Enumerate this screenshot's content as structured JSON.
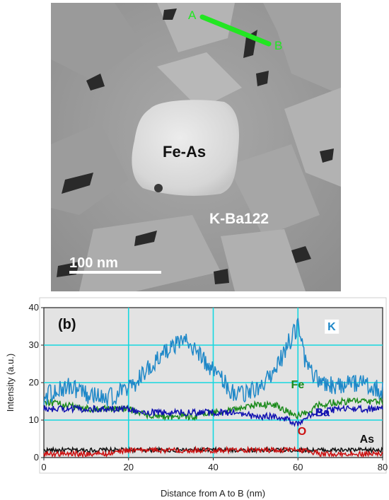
{
  "micrograph": {
    "point_a": "A",
    "point_b": "B",
    "phase_fe_as": "Fe-As",
    "phase_matrix": "K-Ba122",
    "scale_bar": "100 nm",
    "line_color": "#22e622"
  },
  "chart_data": {
    "type": "line",
    "panel_label": "(b)",
    "xlabel": "Distance from A to B (nm)",
    "ylabel": "Intensity (a.u.)",
    "xlim": [
      0,
      80
    ],
    "ylim": [
      0,
      40
    ],
    "xticks": [
      "0",
      "20",
      "40",
      "60",
      "80"
    ],
    "yticks": [
      "0",
      "10",
      "20",
      "30",
      "40"
    ],
    "grid": true,
    "x": [
      0,
      5,
      10,
      15,
      20,
      25,
      30,
      33,
      36,
      40,
      45,
      50,
      55,
      58,
      60,
      62,
      65,
      70,
      75,
      80
    ],
    "series": [
      {
        "name": "K",
        "color": "#1f88c8",
        "values": [
          16,
          19,
          17,
          16,
          18,
          24,
          29,
          31,
          29,
          23,
          17,
          18,
          24,
          31,
          35,
          24,
          20,
          19,
          20,
          18
        ]
      },
      {
        "name": "Fe",
        "color": "#1a8a1a",
        "values": [
          15,
          14,
          13,
          13,
          13,
          11,
          11,
          11,
          11,
          12,
          13,
          14,
          14,
          12,
          11,
          12,
          14,
          15,
          15,
          15
        ]
      },
      {
        "name": "Ba",
        "color": "#1010b0",
        "values": [
          13,
          13,
          13,
          13,
          13,
          12,
          12,
          12,
          12,
          12,
          12,
          11,
          11,
          10,
          9,
          11,
          12,
          13,
          13,
          13
        ]
      },
      {
        "name": "O",
        "color": "#cc1111",
        "values": [
          1,
          1,
          1,
          1,
          2,
          2,
          2,
          2,
          2,
          2,
          2,
          2,
          2,
          2,
          2,
          2,
          1,
          1,
          1,
          1
        ]
      },
      {
        "name": "As",
        "color": "#111111",
        "values": [
          2,
          2,
          2,
          2,
          2,
          2,
          2,
          2,
          2,
          2,
          2,
          2,
          2,
          2,
          2,
          2,
          2,
          2,
          2,
          2
        ]
      }
    ]
  }
}
